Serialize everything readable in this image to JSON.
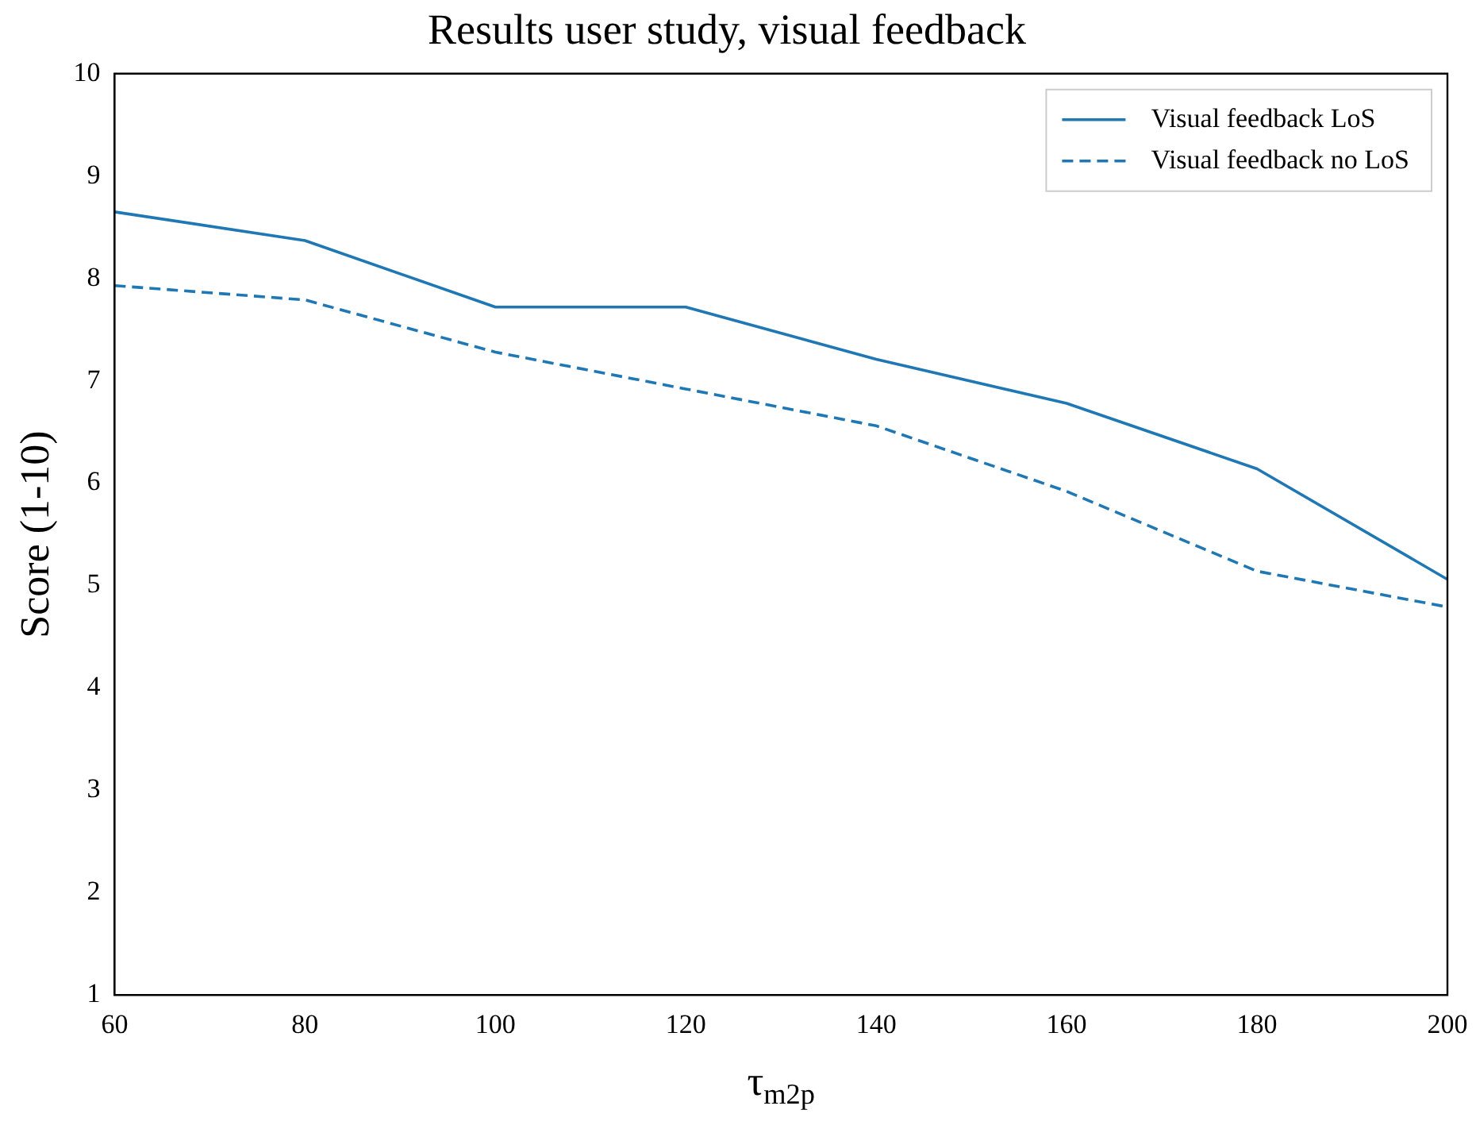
{
  "chart_data": {
    "type": "line",
    "title": "Results user study, visual feedback",
    "xlabel": "τ$_{m2p}$",
    "ylabel": "Score (1-10)",
    "x": [
      60,
      80,
      100,
      120,
      140,
      160,
      180,
      200
    ],
    "series": [
      {
        "name": "Visual feedback LoS",
        "color": "#1f77b4",
        "line_style": "solid",
        "values": [
          8.65,
          8.37,
          7.72,
          7.72,
          7.21,
          6.78,
          6.14,
          5.06
        ]
      },
      {
        "name": "Visual feedback no LoS",
        "color": "#1f77b4",
        "line_style": "dashed",
        "values": [
          7.93,
          7.79,
          7.28,
          6.92,
          6.56,
          5.92,
          5.14,
          4.79
        ]
      }
    ],
    "xlim": [
      60,
      200
    ],
    "xticks": [
      60,
      80,
      100,
      120,
      140,
      160,
      180,
      200
    ],
    "ylim": [
      1,
      10
    ],
    "yticks": [
      1,
      2,
      3,
      4,
      5,
      6,
      7,
      8,
      9,
      10
    ],
    "grid": false,
    "legend": "top right",
    "marker": "none"
  }
}
